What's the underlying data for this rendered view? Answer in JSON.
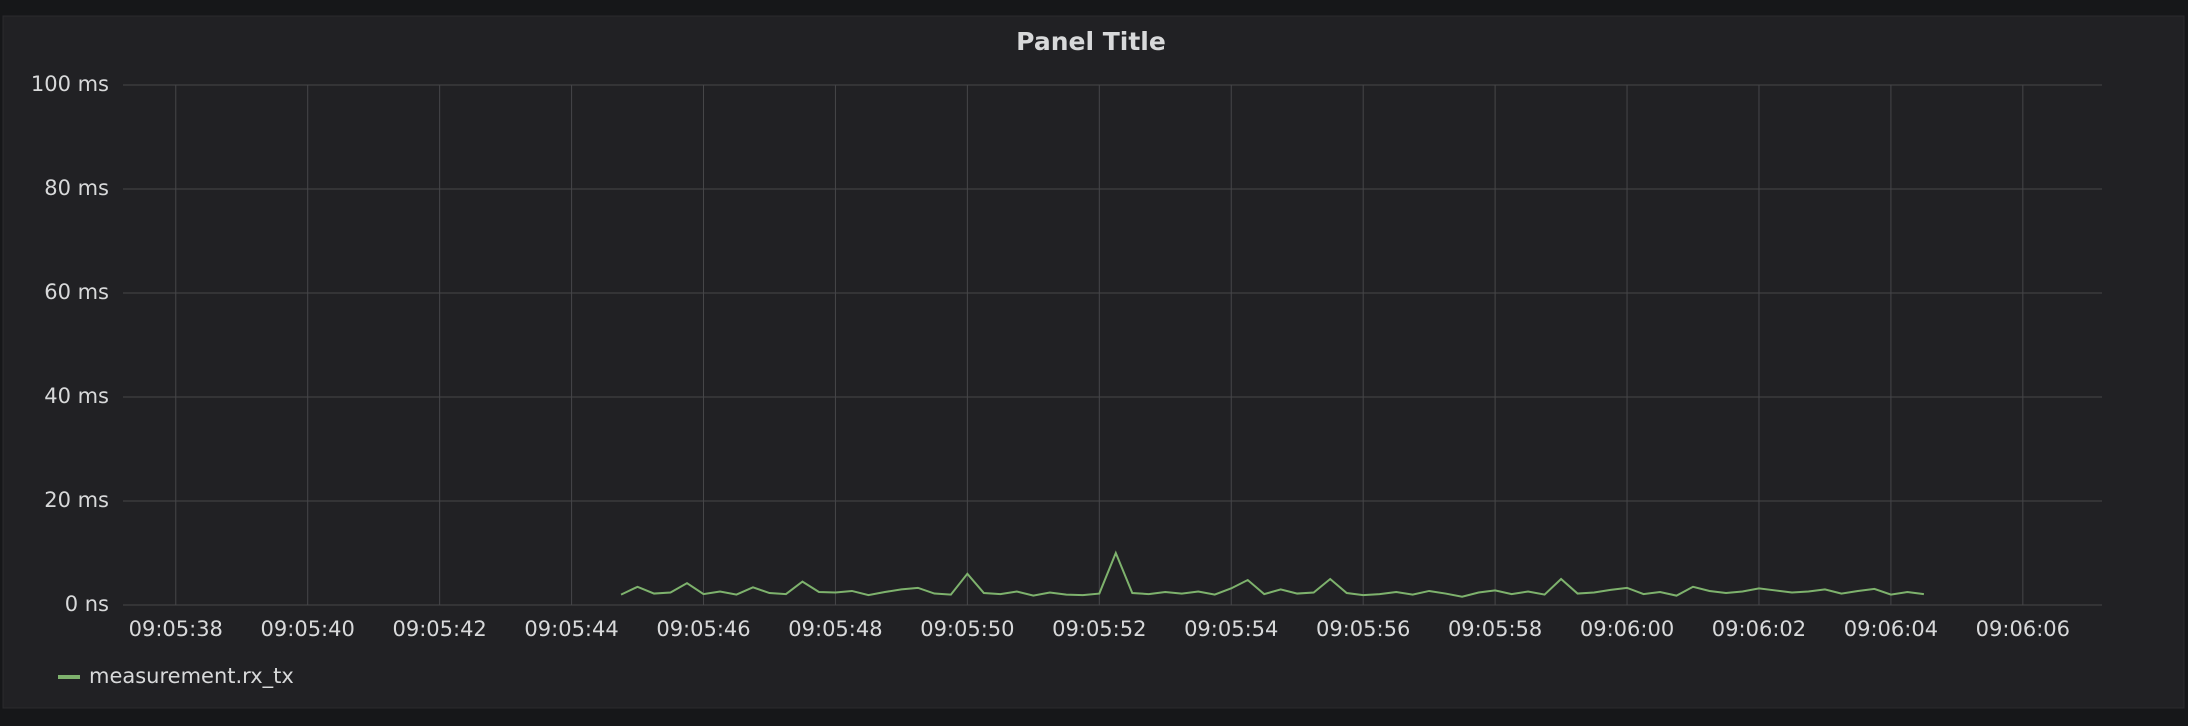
{
  "chart_data": {
    "type": "line",
    "title": "Panel Title",
    "x": [
      32744.75,
      32745.0,
      32745.25,
      32745.5,
      32745.75,
      32746.0,
      32746.25,
      32746.5,
      32746.75,
      32747.0,
      32747.25,
      32747.5,
      32747.75,
      32748.0,
      32748.25,
      32748.5,
      32748.75,
      32749.0,
      32749.25,
      32749.5,
      32749.75,
      32750.0,
      32750.25,
      32750.5,
      32750.75,
      32751.0,
      32751.25,
      32751.5,
      32751.75,
      32752.0,
      32752.25,
      32752.5,
      32752.75,
      32753.0,
      32753.25,
      32753.5,
      32753.75,
      32754.0,
      32754.25,
      32754.5,
      32754.75,
      32755.0,
      32755.25,
      32755.5,
      32755.75,
      32756.0,
      32756.25,
      32756.5,
      32756.75,
      32757.0,
      32757.25,
      32757.5,
      32757.75,
      32758.0,
      32758.25,
      32758.5,
      32758.75,
      32759.0,
      32759.25,
      32759.5,
      32759.75,
      32760.0,
      32760.25,
      32760.5,
      32760.75,
      32761.0,
      32761.25,
      32761.5,
      32761.75,
      32762.0,
      32762.25,
      32762.5,
      32762.75,
      32763.0,
      32763.25,
      32763.5,
      32763.75,
      32764.0,
      32764.25,
      32764.5
    ],
    "series": [
      {
        "name": "measurement.rx_tx",
        "color": "#7eb26d",
        "values": [
          2,
          3.5,
          2.2,
          2.4,
          4.2,
          2.1,
          2.6,
          2.0,
          3.4,
          2.3,
          2.1,
          4.5,
          2.5,
          2.4,
          2.7,
          1.9,
          2.5,
          3.0,
          3.3,
          2.2,
          2.0,
          6.0,
          2.3,
          2.1,
          2.6,
          1.8,
          2.4,
          2.0,
          1.9,
          2.2,
          10.0,
          2.3,
          2.1,
          2.5,
          2.2,
          2.6,
          2.0,
          3.2,
          4.8,
          2.1,
          3.0,
          2.2,
          2.4,
          5.0,
          2.3,
          1.9,
          2.1,
          2.5,
          2.0,
          2.7,
          2.2,
          1.6,
          2.4,
          2.8,
          2.1,
          2.6,
          2.0,
          5.0,
          2.2,
          2.4,
          2.9,
          3.3,
          2.1,
          2.5,
          1.8,
          3.5,
          2.7,
          2.3,
          2.6,
          3.2,
          2.8,
          2.4,
          2.6,
          3.0,
          2.2,
          2.7,
          3.1,
          2.0,
          2.5,
          2.1
        ]
      }
    ],
    "xlim": [
      32737.2,
      32767.2
    ],
    "xticks": [
      {
        "value": 32738,
        "label": "09:05:38"
      },
      {
        "value": 32740,
        "label": "09:05:40"
      },
      {
        "value": 32742,
        "label": "09:05:42"
      },
      {
        "value": 32744,
        "label": "09:05:44"
      },
      {
        "value": 32746,
        "label": "09:05:46"
      },
      {
        "value": 32748,
        "label": "09:05:48"
      },
      {
        "value": 32750,
        "label": "09:05:50"
      },
      {
        "value": 32752,
        "label": "09:05:52"
      },
      {
        "value": 32754,
        "label": "09:05:54"
      },
      {
        "value": 32756,
        "label": "09:05:56"
      },
      {
        "value": 32758,
        "label": "09:05:58"
      },
      {
        "value": 32760,
        "label": "09:06:00"
      },
      {
        "value": 32762,
        "label": "09:06:02"
      },
      {
        "value": 32764,
        "label": "09:06:04"
      },
      {
        "value": 32766,
        "label": "09:06:06"
      }
    ],
    "ylim": [
      0,
      100
    ],
    "yticks": [
      {
        "value": 0,
        "label": "0 ns"
      },
      {
        "value": 20,
        "label": "20 ms"
      },
      {
        "value": 40,
        "label": "40 ms"
      },
      {
        "value": 60,
        "label": "60 ms"
      },
      {
        "value": 80,
        "label": "80 ms"
      },
      {
        "value": 100,
        "label": "100 ms"
      }
    ],
    "grid": true
  }
}
